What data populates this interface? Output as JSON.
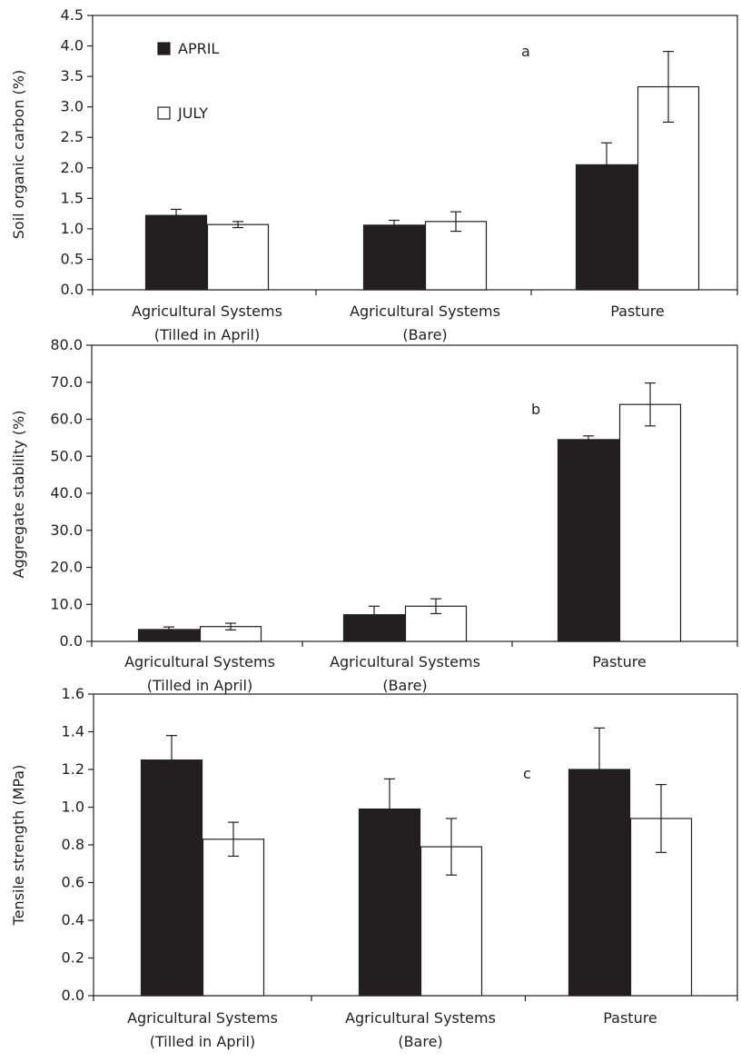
{
  "colors": {
    "april": "#231f20",
    "july": "#ffffff",
    "stroke": "#231f20"
  },
  "legend": [
    {
      "name": "APRIL",
      "fill": "#231f20"
    },
    {
      "name": "JULY",
      "fill": "#ffffff"
    }
  ],
  "chart_data": [
    {
      "type": "bar",
      "panel": "a",
      "ylabel": "Soil organic carbon (%)",
      "ylim": [
        0,
        4.5
      ],
      "yticks": [
        "0.0",
        "0.5",
        "1.0",
        "1.5",
        "2.0",
        "2.5",
        "3.0",
        "3.5",
        "4.0",
        "4.5"
      ],
      "categories": [
        [
          "Agricultural Systems",
          "(Tilled in April)"
        ],
        [
          "Agricultural Systems",
          "(Bare)"
        ],
        [
          "Pasture"
        ]
      ],
      "series": [
        {
          "name": "APRIL",
          "values": [
            1.22,
            1.06,
            2.05
          ],
          "errors": [
            0.1,
            0.08,
            0.36
          ]
        },
        {
          "name": "JULY",
          "values": [
            1.07,
            1.12,
            3.33
          ],
          "errors": [
            0.05,
            0.16,
            0.58
          ]
        }
      ],
      "legend_position": "top-left",
      "grid": false,
      "frame": "box"
    },
    {
      "type": "bar",
      "panel": "b",
      "ylabel": "Aggregate stability (%)",
      "ylim": [
        0,
        80
      ],
      "yticks": [
        "0.0",
        "10.0",
        "20.0",
        "30.0",
        "40.0",
        "50.0",
        "60.0",
        "70.0",
        "80.0"
      ],
      "categories": [
        [
          "Agricultural Systems",
          "(Tilled in April)"
        ],
        [
          "Agricultural Systems",
          "(Bare)"
        ],
        [
          "Pasture"
        ]
      ],
      "series": [
        {
          "name": "APRIL",
          "values": [
            3.2,
            7.2,
            54.5
          ],
          "errors": [
            0.7,
            2.3,
            1.0
          ]
        },
        {
          "name": "JULY",
          "values": [
            4.0,
            9.5,
            64.0
          ],
          "errors": [
            0.9,
            2.0,
            5.8
          ]
        }
      ],
      "grid": false,
      "frame": "box"
    },
    {
      "type": "bar",
      "panel": "c",
      "ylabel": "Tensile strength (MPa)",
      "ylim": [
        0,
        1.6
      ],
      "yticks": [
        "0.0",
        "0.2",
        "0.4",
        "0.6",
        "0.8",
        "1.0",
        "1.2",
        "1.4",
        "1.6"
      ],
      "categories": [
        [
          "Agricultural Systems",
          "(Tilled in April)"
        ],
        [
          "Agricultural Systems",
          "(Bare)"
        ],
        [
          "Pasture"
        ]
      ],
      "series": [
        {
          "name": "APRIL",
          "values": [
            1.25,
            0.99,
            1.2
          ],
          "errors": [
            0.13,
            0.16,
            0.22
          ]
        },
        {
          "name": "JULY",
          "values": [
            0.83,
            0.79,
            0.94
          ],
          "errors": [
            0.09,
            0.15,
            0.18
          ]
        }
      ],
      "grid": false,
      "frame": "box"
    }
  ]
}
